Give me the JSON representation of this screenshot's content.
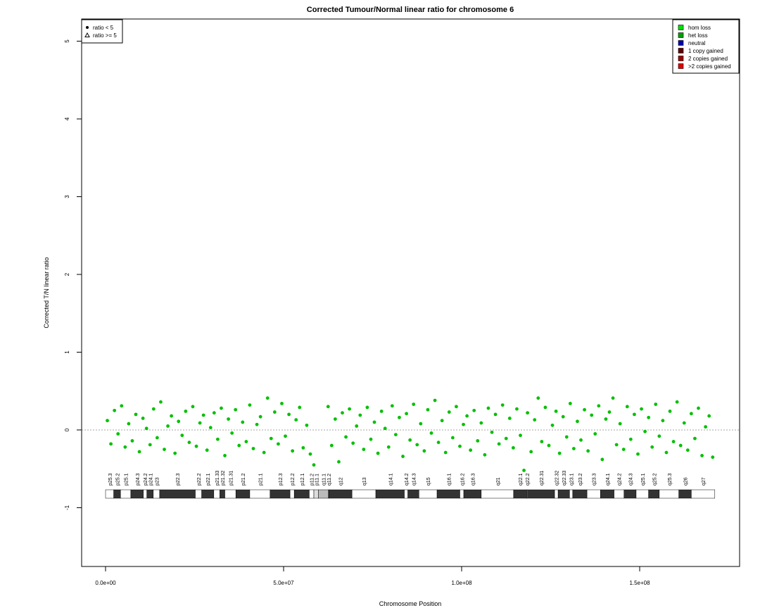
{
  "chart_data": {
    "type": "scatter",
    "title": "Corrected Tumour/Normal linear ratio for chromosome  6",
    "x_label": "Chromosome Position",
    "y_label": "Corrected T/N linear ratio",
    "xlim": [
      -6720000,
      178060000
    ],
    "ylim": [
      -1.756,
      5.285
    ],
    "xticks": [
      {
        "value": 0,
        "label": "0.0e+00"
      },
      {
        "value": 50000000,
        "label": "5.0e+07"
      },
      {
        "value": 100000000,
        "label": "1.0e+08"
      },
      {
        "value": 150000000,
        "label": "1.5e+08"
      }
    ],
    "yticks": [
      -1,
      0,
      1,
      2,
      3,
      4,
      5
    ],
    "reference_line": 0,
    "series": [
      {
        "color": "#00c000",
        "x": [
          500000.0,
          1500000.0,
          2500000.0,
          3500000.0,
          4500000.0,
          5500000.0,
          6500000.0,
          7500000.0,
          8500000.0,
          9500000.0,
          10500000.0,
          11500000.0,
          12500000.0,
          13500000.0,
          14500000.0,
          15500000.0,
          16500000.0,
          17500000.0,
          18500000.0,
          19500000.0,
          20500000.0,
          21500000.0,
          22500000.0,
          23500000.0,
          24500000.0,
          25500000.0,
          26500000.0,
          27500000.0,
          28500000.0,
          29500000.0,
          30500000.0,
          31500000.0,
          32500000.0,
          33500000.0,
          34500000.0,
          35500000.0,
          36500000.0,
          37500000.0,
          38500000.0,
          39500000.0,
          40500000.0,
          41500000.0,
          42500000.0,
          43500000.0,
          44500000.0,
          45500000.0,
          46500000.0,
          47500000.0,
          48500000.0,
          49500000.0,
          50500000.0,
          51500000.0,
          52500000.0,
          53500000.0,
          54500000.0,
          55500000.0,
          56500000.0,
          57500000.0,
          58500000.0,
          62500000.0,
          63500000.0,
          64500000.0,
          65500000.0,
          66500000.0,
          67500000.0,
          68500000.0,
          69500000.0,
          70500000.0,
          71500000.0,
          72500000.0,
          73500000.0,
          74500000.0,
          75500000.0,
          76500000.0,
          77500000.0,
          78500000.0,
          79500000.0,
          80500000.0,
          81500000.0,
          82500000.0,
          83500000.0,
          84500000.0,
          85500000.0,
          86500000.0,
          87500000.0,
          88500000.0,
          89500000.0,
          90500000.0,
          91500000.0,
          92500000.0,
          93500000.0,
          94500000.0,
          95500000.0,
          96500000.0,
          97500000.0,
          98500000.0,
          99500000.0,
          100500000.0,
          101500000.0,
          102500000.0,
          103500000.0,
          104500000.0,
          105500000.0,
          106500000.0,
          107500000.0,
          108500000.0,
          109500000.0,
          110500000.0,
          111500000.0,
          112500000.0,
          113500000.0,
          114500000.0,
          115500000.0,
          116500000.0,
          117500000.0,
          118500000.0,
          119500000.0,
          120500000.0,
          121500000.0,
          122500000.0,
          123500000.0,
          124500000.0,
          125500000.0,
          126500000.0,
          127500000.0,
          128500000.0,
          129500000.0,
          130500000.0,
          131500000.0,
          132500000.0,
          133500000.0,
          134500000.0,
          135500000.0,
          136500000.0,
          137500000.0,
          138500000.0,
          139500000.0,
          140500000.0,
          141500000.0,
          142500000.0,
          143500000.0,
          144500000.0,
          145500000.0,
          146500000.0,
          147500000.0,
          148500000.0,
          149500000.0,
          150500000.0,
          151500000.0,
          152500000.0,
          153500000.0,
          154500000.0,
          155500000.0,
          156500000.0,
          157500000.0,
          158500000.0,
          159500000.0,
          160500000.0,
          161500000.0,
          162500000.0,
          163500000.0,
          164500000.0,
          165500000.0,
          166500000.0,
          167500000.0,
          168500000.0,
          169500000.0,
          170500000.0
        ],
        "values": [
          0.12,
          -0.18,
          0.25,
          -0.05,
          0.31,
          -0.22,
          0.08,
          -0.14,
          0.2,
          -0.28,
          0.15,
          0.02,
          -0.19,
          0.27,
          -0.1,
          0.36,
          -0.25,
          0.05,
          0.18,
          -0.3,
          0.11,
          -0.07,
          0.24,
          -0.16,
          0.3,
          -0.21,
          0.09,
          0.19,
          -0.26,
          0.03,
          0.22,
          -0.12,
          0.28,
          -0.33,
          0.14,
          -0.04,
          0.26,
          -0.2,
          0.1,
          -0.15,
          0.32,
          -0.24,
          0.07,
          0.17,
          -0.29,
          0.41,
          -0.11,
          0.23,
          -0.18,
          0.34,
          -0.08,
          0.2,
          -0.27,
          0.13,
          0.29,
          -0.23,
          0.06,
          -0.31,
          -0.45,
          0.3,
          -0.2,
          0.14,
          -0.41,
          0.22,
          -0.09,
          0.27,
          -0.17,
          0.05,
          0.19,
          -0.25,
          0.29,
          -0.12,
          0.1,
          -0.3,
          0.24,
          0.02,
          -0.22,
          0.31,
          -0.06,
          0.16,
          -0.34,
          0.21,
          -0.13,
          0.33,
          -0.19,
          0.08,
          -0.27,
          0.26,
          -0.04,
          0.38,
          -0.16,
          0.12,
          -0.29,
          0.23,
          -0.1,
          0.3,
          -0.21,
          0.07,
          0.18,
          -0.26,
          0.25,
          -0.14,
          0.09,
          -0.32,
          0.28,
          -0.03,
          0.2,
          -0.18,
          0.32,
          -0.11,
          0.15,
          -0.23,
          0.27,
          -0.07,
          -0.52,
          0.22,
          -0.28,
          0.13,
          0.41,
          -0.15,
          0.29,
          -0.2,
          0.06,
          0.24,
          -0.3,
          0.17,
          -0.09,
          0.34,
          -0.24,
          0.11,
          -0.13,
          0.26,
          -0.27,
          0.19,
          -0.05,
          0.31,
          -0.38,
          0.14,
          0.23,
          0.41,
          -0.19,
          0.08,
          -0.25,
          0.3,
          -0.12,
          0.2,
          -0.31,
          0.27,
          -0.02,
          0.16,
          -0.22,
          0.33,
          -0.08,
          0.12,
          -0.29,
          0.24,
          -0.15,
          0.36,
          -0.2,
          0.09,
          -0.26,
          0.21,
          -0.11,
          0.28,
          -0.33,
          0.04,
          0.18,
          -0.35
        ]
      }
    ],
    "symbol_legend": {
      "labels": [
        "ratio < 5",
        "ratio >= 5"
      ]
    },
    "color_legend": {
      "labels": [
        "hom loss",
        "het loss",
        "neutral",
        "1 copy gained",
        "2 copies gained",
        ">2 copies gained"
      ],
      "colors": [
        "#00e000",
        "#00a000",
        "#0000b0",
        "#600000",
        "#a00000",
        "#e00000"
      ]
    },
    "ideogram": {
      "bands": [
        "p25.3",
        "p25.2",
        "p25.1",
        "p24.3",
        "p24.2",
        "p24.1",
        "p23",
        "p22.3",
        "p22.2",
        "p22.1",
        "p21.33",
        "p21.32",
        "p21.31",
        "p21.2",
        "p21.1",
        "p12.3",
        "p12.2",
        "p12.1",
        "p11.2",
        "p11.1",
        "q11.1",
        "q11.2",
        "q12",
        "q13",
        "q14.1",
        "q14.2",
        "q14.3",
        "q15",
        "q16.1",
        "q16.2",
        "q16.3",
        "q21",
        "q22.1",
        "q22.2",
        "q22.31",
        "q22.32",
        "q22.33",
        "q23.1",
        "q23.2",
        "q23.3",
        "q24.1",
        "q24.2",
        "q24.3",
        "q25.1",
        "q25.2",
        "q25.3",
        "q26",
        "q27"
      ],
      "starts": [
        0,
        2300000.0,
        4200000.0,
        7100000.0,
        10600000.0,
        11600000.0,
        13400000.0,
        15200000.0,
        25200000.0,
        27000000.0,
        30400000.0,
        32100000.0,
        33500000.0,
        36600000.0,
        40500000.0,
        46200000.0,
        51800000.0,
        53000000.0,
        57200000.0,
        58500000.0,
        59800000.0,
        62600000.0,
        62700000.0,
        69200000.0,
        75900000.0,
        83900000.0,
        84900000.0,
        88000000.0,
        93100000.0,
        99500000.0,
        100600000.0,
        105500000.0,
        114600000.0,
        118300000.0,
        118500000.0,
        126100000.0,
        127100000.0,
        130300000.0,
        131200000.0,
        135200000.0,
        139000000.0,
        142800000.0,
        145600000.0,
        149000000.0,
        152500000.0,
        155500000.0,
        161000000.0,
        164500000.0
      ],
      "ends": [
        2300000.0,
        4200000.0,
        7100000.0,
        10600000.0,
        11600000.0,
        13400000.0,
        15200000.0,
        25200000.0,
        27000000.0,
        30400000.0,
        32100000.0,
        33500000.0,
        36600000.0,
        40500000.0,
        46200000.0,
        51800000.0,
        53000000.0,
        57200000.0,
        58500000.0,
        59800000.0,
        62600000.0,
        62700000.0,
        69200000.0,
        75900000.0,
        83900000.0,
        84900000.0,
        88000000.0,
        93100000.0,
        99500000.0,
        100600000.0,
        105500000.0,
        114600000.0,
        118300000.0,
        118500000.0,
        126100000.0,
        127100000.0,
        130300000.0,
        131200000.0,
        135200000.0,
        139000000.0,
        142800000.0,
        145600000.0,
        149000000.0,
        152500000.0,
        155500000.0,
        161000000.0,
        164500000.0,
        171100000.0
      ],
      "colors": [
        "#ffffff",
        "#333333",
        "#ffffff",
        "#333333",
        "#ffffff",
        "#333333",
        "#ffffff",
        "#333333",
        "#ffffff",
        "#333333",
        "#ffffff",
        "#333333",
        "#ffffff",
        "#333333",
        "#ffffff",
        "#333333",
        "#ffffff",
        "#333333",
        "#ffffff",
        "#dddddd",
        "#bbbbbb",
        "#ffffff",
        "#333333",
        "#ffffff",
        "#333333",
        "#ffffff",
        "#333333",
        "#ffffff",
        "#333333",
        "#ffffff",
        "#333333",
        "#ffffff",
        "#333333",
        "#ffffff",
        "#333333",
        "#ffffff",
        "#333333",
        "#ffffff",
        "#333333",
        "#ffffff",
        "#333333",
        "#ffffff",
        "#333333",
        "#ffffff",
        "#333333",
        "#ffffff",
        "#333333",
        "#ffffff"
      ]
    }
  }
}
